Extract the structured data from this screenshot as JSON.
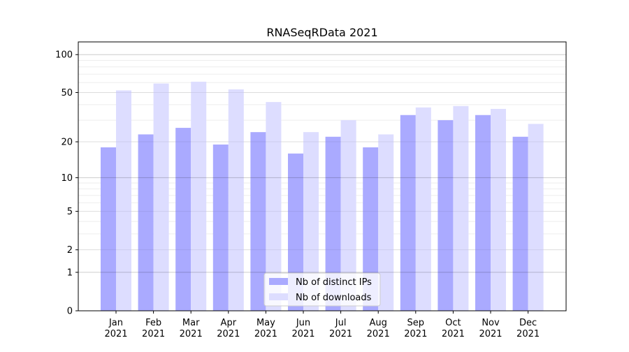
{
  "chart_data": {
    "type": "bar",
    "title": "RNASeqRData 2021",
    "xlabel": "",
    "ylabel": "",
    "yscale": "log10(1+y)",
    "ylim": [
      0,
      115
    ],
    "yticks": [
      0,
      1,
      2,
      5,
      10,
      20,
      50,
      100
    ],
    "ytick_labels": [
      "0",
      "1",
      "2",
      "5",
      "10",
      "20",
      "50",
      "100"
    ],
    "categories": [
      "Jan",
      "Feb",
      "Mar",
      "Apr",
      "May",
      "Jun",
      "Jul",
      "Aug",
      "Sep",
      "Oct",
      "Nov",
      "Dec"
    ],
    "year_label": "2021",
    "series": [
      {
        "name": "Nb of distinct IPs",
        "color": "#aaaaff",
        "values": [
          18,
          23,
          26,
          19,
          24,
          16,
          22,
          18,
          33,
          30,
          33,
          22
        ]
      },
      {
        "name": "Nb of downloads",
        "color": "#ddddff",
        "values": [
          52,
          59,
          61,
          53,
          42,
          24,
          30,
          23,
          38,
          39,
          37,
          28
        ]
      }
    ],
    "legend": "bottom-center",
    "grid": true
  }
}
